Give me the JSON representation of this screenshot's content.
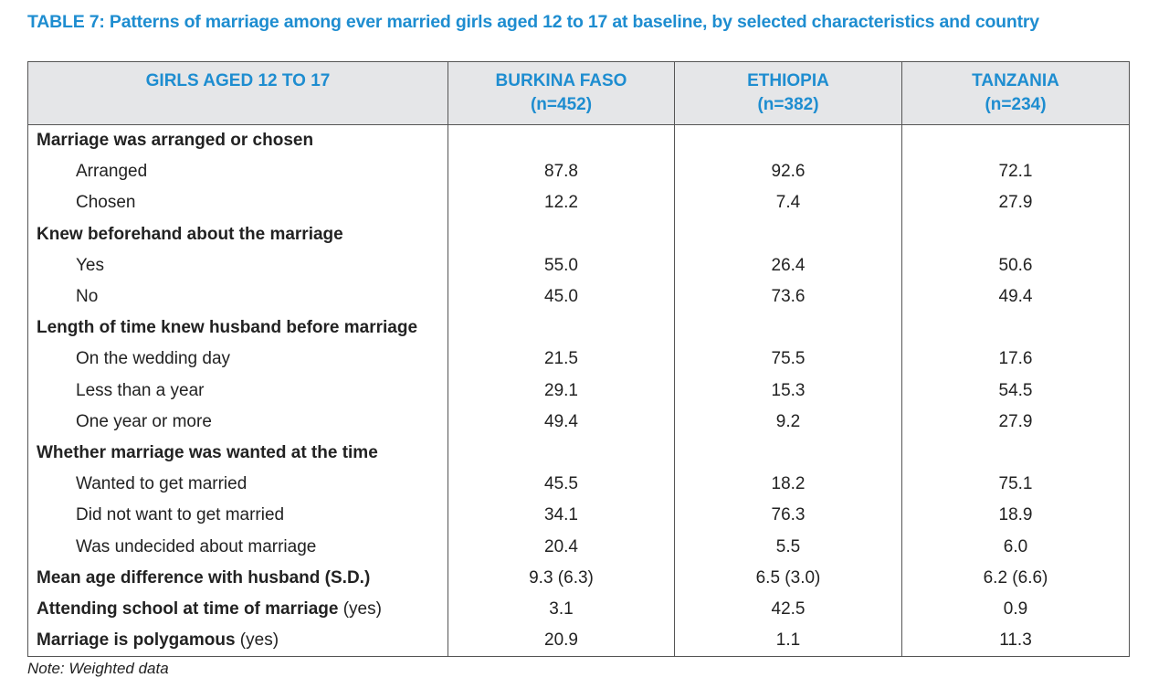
{
  "title": "TABLE 7:  Patterns of marriage among ever married girls aged 12 to 17 at baseline, by selected characteristics and country",
  "header": [
    {
      "name": "GIRLS AGED 12 TO 17"
    },
    {
      "name": "BURKINA FASO",
      "n": "(n=452)"
    },
    {
      "name": "ETHIOPIA",
      "n": "(n=382)"
    },
    {
      "name": "TANZANIA",
      "n": "(n=234)"
    }
  ],
  "sections": [
    {
      "label": "Marriage was arranged or chosen",
      "items": [
        {
          "label": "Arranged",
          "values": [
            "87.8",
            "92.6",
            "72.1"
          ]
        },
        {
          "label": "Chosen",
          "values": [
            "12.2",
            "7.4",
            "27.9"
          ]
        }
      ]
    },
    {
      "label": "Knew beforehand about the marriage",
      "items": [
        {
          "label": "Yes",
          "values": [
            "55.0",
            "26.4",
            "50.6"
          ]
        },
        {
          "label": "No",
          "values": [
            "45.0",
            "73.6",
            "49.4"
          ]
        }
      ]
    },
    {
      "label": "Length of time knew husband before marriage",
      "items": [
        {
          "label": "On the wedding day",
          "values": [
            "21.5",
            "75.5",
            "17.6"
          ]
        },
        {
          "label": "Less than a year",
          "values": [
            "29.1",
            "15.3",
            "54.5"
          ]
        },
        {
          "label": "One year or more",
          "values": [
            "49.4",
            "9.2",
            "27.9"
          ]
        }
      ]
    },
    {
      "label": "Whether marriage was wanted at the time",
      "items": [
        {
          "label": "Wanted to get married",
          "values": [
            "45.5",
            "18.2",
            "75.1"
          ]
        },
        {
          "label": "Did not want to get married",
          "values": [
            "34.1",
            "76.3",
            "18.9"
          ]
        },
        {
          "label": "Was undecided about marriage",
          "values": [
            "20.4",
            "5.5",
            "6.0"
          ]
        }
      ]
    }
  ],
  "summary_rows": [
    {
      "label": "Mean age difference with husband (S.D.)",
      "values": [
        "9.3 (6.3)",
        "6.5 (3.0)",
        "6.2 (6.6)"
      ]
    },
    {
      "label": "Attending school at time of marriage",
      "qualifier": "(yes)",
      "values": [
        "3.1",
        "42.5",
        "0.9"
      ]
    },
    {
      "label": "Marriage is polygamous",
      "qualifier": "(yes)",
      "values": [
        "20.9",
        "1.1",
        "11.3"
      ]
    }
  ],
  "note": "Note:  Weighted data"
}
